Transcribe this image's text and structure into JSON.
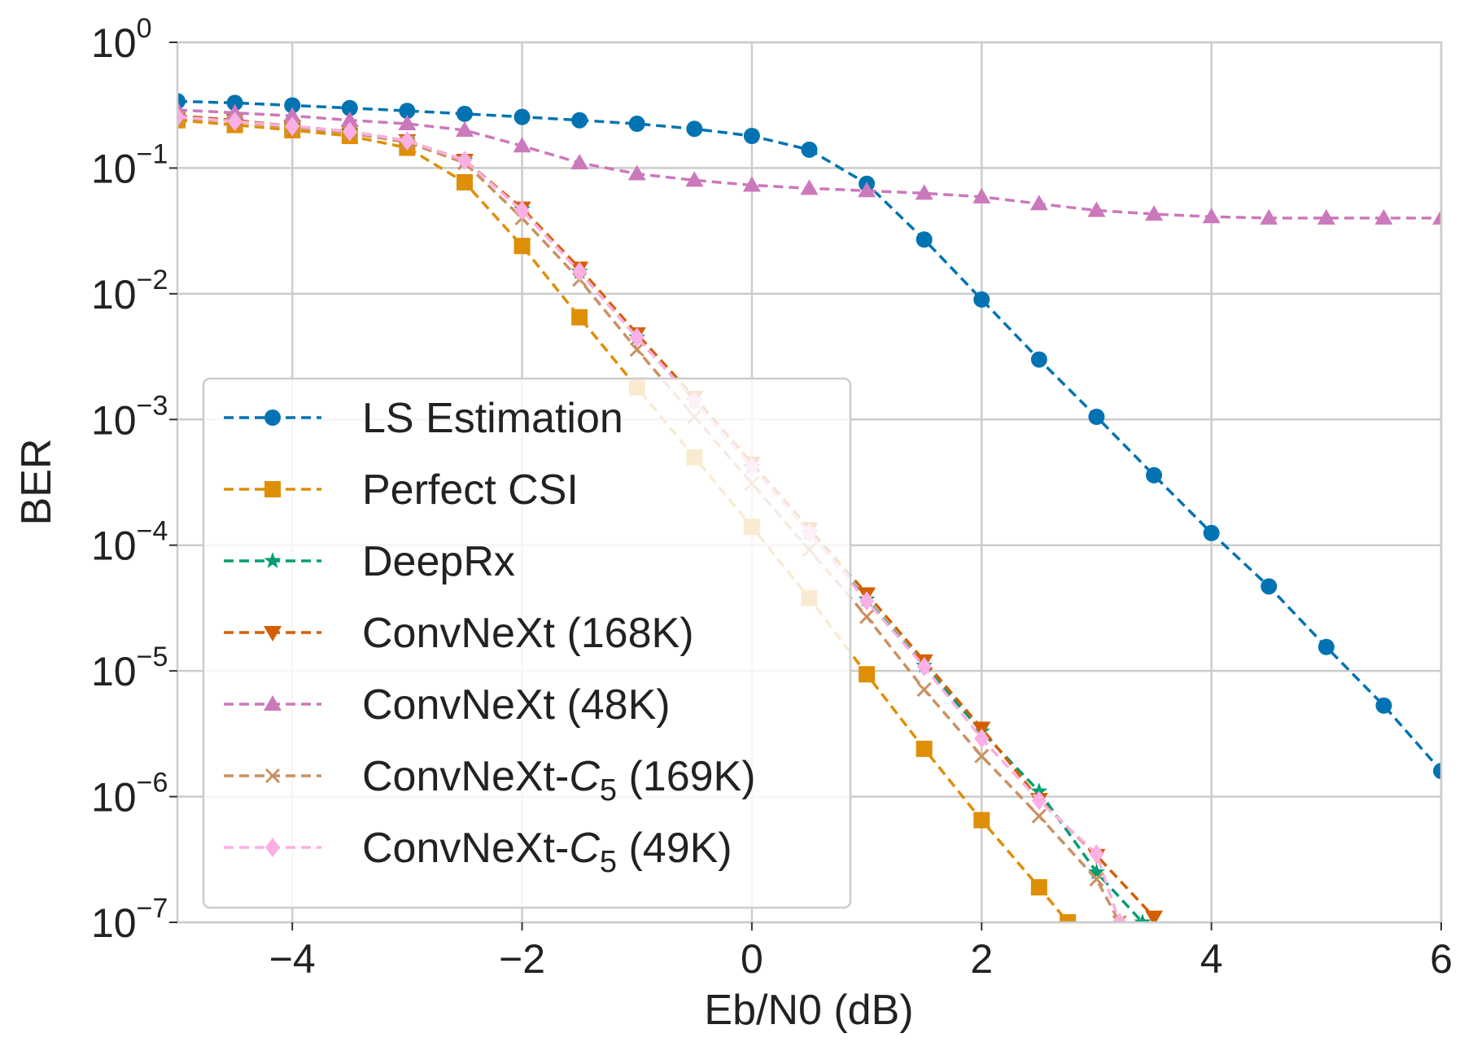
{
  "chart_data": {
    "type": "line",
    "xlabel": "Eb/N0 (dB)",
    "ylabel": "BER",
    "xlim": [
      -5,
      6
    ],
    "ylim": [
      1e-07,
      1
    ],
    "yscale": "log",
    "grid": true,
    "legend_position": "lower-left",
    "x_ticks": [
      -4,
      -2,
      0,
      2,
      4,
      6
    ],
    "y_ticks": [
      0,
      -1,
      -2,
      -3,
      -4,
      -5,
      -6,
      -7
    ],
    "series": [
      {
        "name": "LS Estimation",
        "color": "#0173b2",
        "marker": "circle",
        "x": [
          -5,
          -4.5,
          -4,
          -3.5,
          -3,
          -2.5,
          -2,
          -1.5,
          -1,
          -0.5,
          0,
          0.5,
          1,
          1.5,
          2,
          2.5,
          3,
          3.5,
          4,
          4.5,
          5,
          5.5,
          6
        ],
        "y": [
          0.34,
          0.33,
          0.315,
          0.3,
          0.285,
          0.27,
          0.255,
          0.24,
          0.225,
          0.205,
          0.18,
          0.14,
          0.075,
          0.027,
          0.009,
          0.003,
          0.00105,
          0.00036,
          0.000125,
          4.7e-05,
          1.55e-05,
          5.3e-06,
          1.6e-06
        ]
      },
      {
        "name": "Perfect CSI",
        "color": "#de8f05",
        "marker": "square",
        "x": [
          -5,
          -4.5,
          -4,
          -3.5,
          -3,
          -2.5,
          -2,
          -1.5,
          -1,
          -0.5,
          0,
          0.5,
          1,
          1.5,
          2,
          2.5,
          2.75
        ],
        "y": [
          0.24,
          0.22,
          0.2,
          0.18,
          0.145,
          0.077,
          0.024,
          0.0065,
          0.0018,
          0.0005,
          0.00014,
          3.8e-05,
          9.4e-06,
          2.4e-06,
          6.5e-07,
          1.9e-07,
          1e-07
        ]
      },
      {
        "name": "DeepRx",
        "color": "#029e73",
        "marker": "star",
        "x": [
          -5,
          -4.5,
          -4,
          -3.5,
          -3,
          -2.5,
          -2,
          -1.5,
          -1,
          -0.5,
          0,
          0.5,
          1,
          1.5,
          2,
          2.5,
          3,
          3.4
        ],
        "y": [
          0.26,
          0.24,
          0.215,
          0.195,
          0.165,
          0.115,
          0.047,
          0.015,
          0.0045,
          0.0014,
          0.00042,
          0.000125,
          3.7e-05,
          1.1e-05,
          3.3e-06,
          1.1e-06,
          2.5e-07,
          1e-07
        ]
      },
      {
        "name": "ConvNeXt (168K)",
        "color": "#d55e00",
        "marker": "triangle-down",
        "x": [
          -5,
          -4.5,
          -4,
          -3.5,
          -3,
          -2.5,
          -2,
          -1.5,
          -1,
          -0.5,
          0,
          0.5,
          1,
          1.5,
          2,
          2.5,
          3,
          3.5
        ],
        "y": [
          0.26,
          0.24,
          0.215,
          0.195,
          0.165,
          0.115,
          0.048,
          0.016,
          0.0048,
          0.0015,
          0.00045,
          0.000135,
          4.1e-05,
          1.2e-05,
          3.5e-06,
          9.5e-07,
          3.4e-07,
          1.1e-07
        ]
      },
      {
        "name": "ConvNeXt (48K)",
        "color": "#cc78bc",
        "marker": "triangle-up",
        "x": [
          -5,
          -4.5,
          -4,
          -3.5,
          -3,
          -2.5,
          -2,
          -1.5,
          -1,
          -0.5,
          0,
          0.5,
          1,
          1.5,
          2,
          2.5,
          3,
          3.5,
          4,
          4.5,
          5,
          5.5,
          6
        ],
        "y": [
          0.29,
          0.275,
          0.26,
          0.24,
          0.225,
          0.2,
          0.15,
          0.11,
          0.09,
          0.08,
          0.073,
          0.069,
          0.066,
          0.063,
          0.059,
          0.052,
          0.046,
          0.043,
          0.041,
          0.04,
          0.04,
          0.04,
          0.04
        ]
      },
      {
        "name": "ConvNeXt-C5 (169K)",
        "color": "#ca9161",
        "marker": "x",
        "x": [
          -5,
          -4.5,
          -4,
          -3.5,
          -3,
          -2.5,
          -2,
          -1.5,
          -1,
          -0.5,
          0,
          0.5,
          1,
          1.5,
          2,
          2.5,
          3,
          3.2
        ],
        "y": [
          0.25,
          0.235,
          0.21,
          0.19,
          0.16,
          0.11,
          0.04,
          0.013,
          0.0036,
          0.00105,
          0.00031,
          9.2e-05,
          2.7e-05,
          7.1e-06,
          2.1e-06,
          7e-07,
          2.2e-07,
          1e-07
        ]
      },
      {
        "name": "ConvNeXt-C5 (49K)",
        "color": "#fbafe4",
        "marker": "diamond",
        "x": [
          -5,
          -4.5,
          -4,
          -3.5,
          -3,
          -2.5,
          -2,
          -1.5,
          -1,
          -0.5,
          0,
          0.5,
          1,
          1.5,
          2,
          2.5,
          3,
          3.2
        ],
        "y": [
          0.255,
          0.235,
          0.215,
          0.195,
          0.165,
          0.115,
          0.046,
          0.015,
          0.0045,
          0.0014,
          0.00042,
          0.000125,
          3.6e-05,
          1.08e-05,
          2.9e-06,
          9.3e-07,
          3.5e-07,
          1e-07
        ]
      }
    ]
  }
}
